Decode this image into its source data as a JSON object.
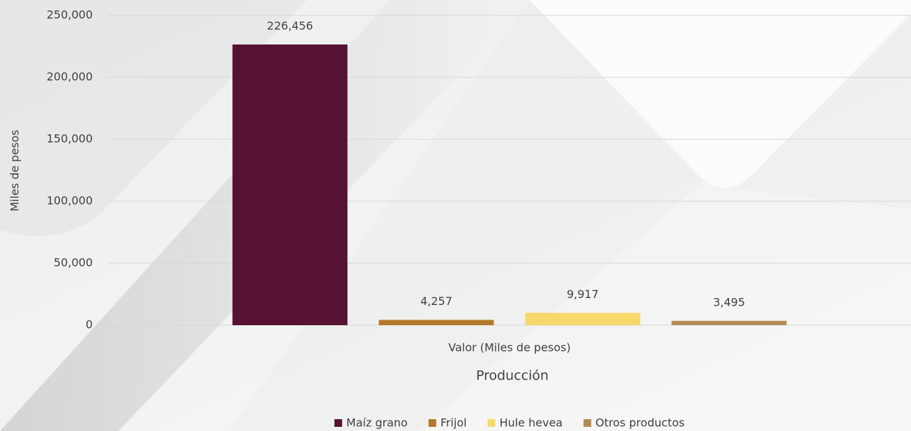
{
  "chart_data": {
    "type": "bar",
    "y_axis_title": "Miles de pesos",
    "x_axis_title": "Producción",
    "categories": [
      "Valor (Miles de pesos)"
    ],
    "series": [
      {
        "name": "Maíz grano",
        "color": "#561232",
        "values": [
          226456
        ],
        "value_labels": [
          "226,456"
        ]
      },
      {
        "name": "Frijol",
        "color": "#b5782a",
        "values": [
          4257
        ],
        "value_labels": [
          "4,257"
        ]
      },
      {
        "name": "Hule hevea",
        "color": "#f6d86b",
        "values": [
          9917
        ],
        "value_labels": [
          "9,917"
        ]
      },
      {
        "name": "Otros productos",
        "color": "#b48a55",
        "values": [
          3495
        ],
        "value_labels": [
          "3,495"
        ]
      }
    ],
    "ylim": [
      0,
      250000
    ],
    "yticks": [
      0,
      {
        "value": 50000,
        "label": "50,000"
      },
      {
        "value": 100000,
        "label": "100,000"
      },
      {
        "value": 150000,
        "label": "150,000"
      },
      {
        "value": 200000,
        "label": "200,000"
      },
      {
        "value": 250000,
        "label": "250,000"
      }
    ],
    "grid": true,
    "legend": "bottom"
  }
}
